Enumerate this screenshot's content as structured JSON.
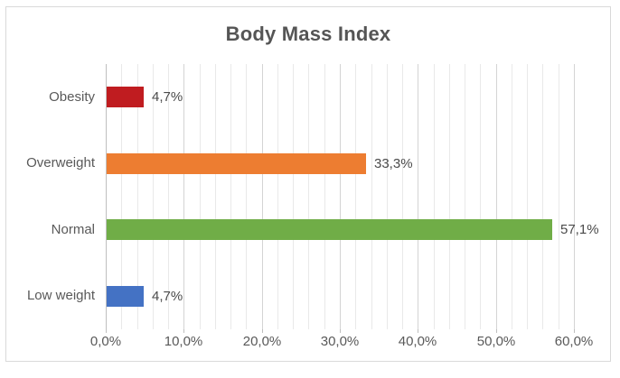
{
  "chart_data": {
    "type": "bar",
    "orientation": "horizontal",
    "title": "Body Mass Index",
    "categories": [
      "Obesity",
      "Overweight",
      "Normal",
      "Low weight"
    ],
    "values": [
      4.7,
      33.3,
      57.1,
      4.7
    ],
    "value_labels": [
      "4,7%",
      "33,3%",
      "57,1%",
      "4,7%"
    ],
    "bar_colors": [
      "#C01C20",
      "#ED7D31",
      "#70AD47",
      "#4472C4"
    ],
    "xlabel": "",
    "ylabel": "",
    "xlim": [
      0,
      60
    ],
    "x_axis": {
      "min": 0,
      "max": 60,
      "major_step": 10,
      "minor_step": 2,
      "tick_labels": [
        "0,0%",
        "10,0%",
        "20,0%",
        "30,0%",
        "40,0%",
        "50,0%",
        "60,0%"
      ]
    },
    "grid": {
      "enabled": true,
      "minor_color": "#e9e9e9",
      "major_color": "#d4d4d4"
    },
    "legend": "none",
    "colors": {
      "title_text": "#555555",
      "label_text": "#595959",
      "value_text": "#4a4a4a",
      "axis_line": "#bfbfbf",
      "frame_border": "#d9d9d9",
      "background": "#ffffff"
    }
  }
}
